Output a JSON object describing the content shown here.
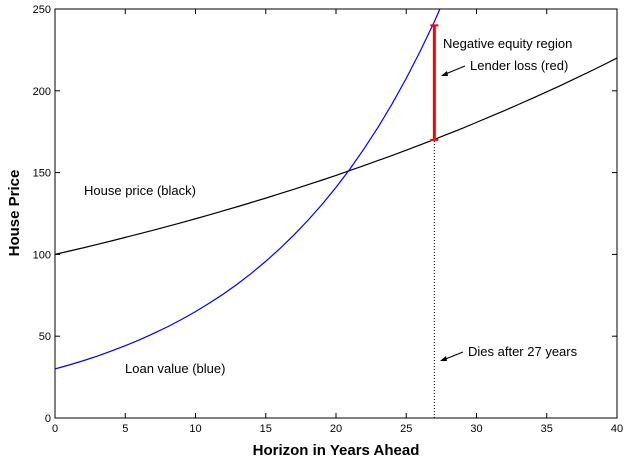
{
  "chart_data": {
    "type": "line",
    "xlabel": "Horizon in Years Ahead",
    "ylabel": "House Price",
    "xlim": [
      0,
      40
    ],
    "ylim": [
      0,
      250
    ],
    "xticks": [
      0,
      5,
      10,
      15,
      20,
      25,
      30,
      35,
      40
    ],
    "yticks": [
      0,
      50,
      100,
      150,
      200,
      250
    ],
    "series": [
      {
        "name": "House price (black)",
        "color": "#000000",
        "x": [
          0,
          1,
          2,
          3,
          4,
          5,
          6,
          7,
          8,
          9,
          10,
          11,
          12,
          13,
          14,
          15,
          16,
          17,
          18,
          19,
          20,
          21,
          22,
          23,
          24,
          25,
          26,
          27,
          28,
          29,
          30,
          31,
          32,
          33,
          34,
          35,
          36,
          37,
          38,
          39,
          40
        ],
        "values": [
          100,
          102.0,
          104.0,
          106.1,
          108.2,
          110.4,
          112.6,
          114.8,
          117.1,
          119.4,
          121.8,
          124.2,
          126.7,
          129.2,
          131.8,
          134.4,
          137.1,
          139.8,
          142.6,
          145.4,
          148.3,
          151.3,
          154.3,
          157.4,
          160.5,
          163.7,
          167.0,
          170.3,
          173.7,
          177.1,
          180.7,
          184.3,
          187.9,
          191.7,
          195.5,
          199.4,
          203.3,
          207.4,
          211.5,
          215.7,
          220.0
        ]
      },
      {
        "name": "Loan value (blue)",
        "color": "#0000ff",
        "x": [
          0,
          1,
          2,
          3,
          4,
          5,
          6,
          7,
          8,
          9,
          10,
          11,
          12,
          13,
          14,
          15,
          16,
          17,
          18,
          19,
          20,
          21,
          22,
          23,
          24,
          25,
          26,
          27,
          28
        ],
        "values": [
          30,
          32.4,
          35.0,
          37.8,
          40.9,
          44.2,
          47.7,
          51.6,
          55.7,
          60.2,
          65.0,
          70.3,
          75.9,
          82.0,
          88.6,
          95.8,
          103.5,
          111.8,
          120.8,
          130.5,
          141.0,
          152.3,
          164.6,
          177.8,
          192.1,
          207.6,
          224.3,
          242.3,
          261.8
        ]
      }
    ],
    "loss": {
      "name": "Lender loss (red)",
      "color": "#ff0000",
      "x": 27,
      "low": 170,
      "high": 240
    },
    "annotations": {
      "region": "Negative equity region",
      "death": "Dies after 27 years"
    }
  }
}
